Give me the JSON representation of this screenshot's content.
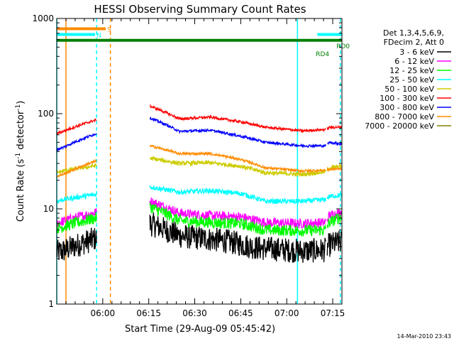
{
  "chart_data": {
    "type": "line",
    "title": "HESSI Observing Summary Count Rates",
    "xlabel": "Start Time (29-Aug-09 05:45:42)",
    "ylabel": "Count Rate (s⁻¹ detector⁻¹)",
    "ylabel_parts": {
      "base": "Count Rate (s",
      "sup1": "-1",
      "mid": " detector",
      "sup2": "-1",
      "end": ")"
    },
    "xlim_min": [
      0,
      93
    ],
    "ylim": [
      1,
      1000
    ],
    "yscale": "log",
    "x_ticks": [
      {
        "min": 15,
        "label": "06:00"
      },
      {
        "min": 30,
        "label": "06:15"
      },
      {
        "min": 45,
        "label": "06:30"
      },
      {
        "min": 60,
        "label": "06:45"
      },
      {
        "min": 75,
        "label": "07:00"
      },
      {
        "min": 90,
        "label": "07:15"
      }
    ],
    "y_ticks": [
      {
        "value": 1,
        "label": "1"
      },
      {
        "value": 10,
        "label": "10"
      },
      {
        "value": 100,
        "label": "100"
      },
      {
        "value": 1000,
        "label": "1000"
      }
    ],
    "legend_placement": "right",
    "legend_header": [
      "Det 1,3,4,5,6,9,",
      "FDecim 2, Att 0"
    ],
    "gaps_min": [
      [
        13,
        30.3
      ],
      [
        87.8,
        88.1
      ]
    ],
    "series": [
      {
        "name": "3 - 6 keV",
        "color": "#000000",
        "noise": 0.3,
        "values": [
          [
            0,
            3.5
          ],
          [
            2,
            3.6
          ],
          [
            30.4,
            7.0
          ],
          [
            40,
            5.2
          ],
          [
            55,
            4.6
          ],
          [
            65,
            3.9
          ],
          [
            80,
            3.6
          ],
          [
            87.5,
            3.7
          ],
          [
            89,
            4.2
          ],
          [
            93,
            4.5
          ]
        ]
      },
      {
        "name": "6 - 12 keV",
        "color": "#ff00ff",
        "noise": 0.12,
        "values": [
          [
            0,
            7.0
          ],
          [
            2,
            7.4
          ],
          [
            30.4,
            12.0
          ],
          [
            40,
            9.0
          ],
          [
            50,
            8.5
          ],
          [
            60,
            8.2
          ],
          [
            68,
            7.2
          ],
          [
            80,
            7.0
          ],
          [
            87.5,
            7.2
          ],
          [
            89,
            8.5
          ],
          [
            93,
            9.3
          ]
        ]
      },
      {
        "name": "12 - 25 keV",
        "color": "#00ff00",
        "noise": 0.14,
        "values": [
          [
            0,
            6.3
          ],
          [
            2,
            6.5
          ],
          [
            30.4,
            10.5
          ],
          [
            40,
            7.5
          ],
          [
            50,
            7.2
          ],
          [
            60,
            7.0
          ],
          [
            68,
            6.0
          ],
          [
            80,
            5.9
          ],
          [
            87.5,
            6.0
          ],
          [
            89,
            7.2
          ],
          [
            93,
            8.3
          ]
        ]
      },
      {
        "name": "25 - 50 keV",
        "color": "#00ffff",
        "noise": 0.06,
        "values": [
          [
            0,
            12.0
          ],
          [
            2,
            12.5
          ],
          [
            30.4,
            17.0
          ],
          [
            40,
            15.0
          ],
          [
            50,
            15.5
          ],
          [
            60,
            14.5
          ],
          [
            68,
            12.0
          ],
          [
            80,
            12.0
          ],
          [
            87.5,
            12.5
          ],
          [
            89,
            13.5
          ],
          [
            93,
            14.0
          ]
        ]
      },
      {
        "name": "50 - 100 keV",
        "color": "#cccc00",
        "noise": 0.05,
        "values": [
          [
            0,
            24.0
          ],
          [
            2,
            25.0
          ],
          [
            30.4,
            34.0
          ],
          [
            40,
            30.0
          ],
          [
            50,
            30.5
          ],
          [
            60,
            28.0
          ],
          [
            68,
            24.0
          ],
          [
            80,
            23.0
          ],
          [
            87.5,
            24.5
          ],
          [
            89,
            27.0
          ],
          [
            93,
            28.0
          ]
        ]
      },
      {
        "name": "100 - 300 keV",
        "color": "#ff0000",
        "noise": 0.03,
        "values": [
          [
            0,
            62.0
          ],
          [
            2,
            65.0
          ],
          [
            30.4,
            120.0
          ],
          [
            40,
            88.0
          ],
          [
            50,
            92.0
          ],
          [
            60,
            82.0
          ],
          [
            68,
            72.0
          ],
          [
            80,
            66.0
          ],
          [
            87.5,
            68.0
          ],
          [
            89,
            72.0
          ],
          [
            93,
            72.0
          ]
        ]
      },
      {
        "name": "300 - 800 keV",
        "color": "#0000ff",
        "noise": 0.03,
        "values": [
          [
            0,
            42.0
          ],
          [
            2,
            44.0
          ],
          [
            30.4,
            90.0
          ],
          [
            40,
            65.0
          ],
          [
            50,
            67.0
          ],
          [
            60,
            58.0
          ],
          [
            68,
            50.0
          ],
          [
            80,
            46.0
          ],
          [
            87.5,
            46.0
          ],
          [
            89,
            50.0
          ],
          [
            93,
            48.0
          ]
        ]
      },
      {
        "name": "800 - 7000 keV",
        "color": "#ff8c00",
        "noise": 0.03,
        "values": [
          [
            0,
            22.0
          ],
          [
            2,
            23.0
          ],
          [
            30.4,
            46.0
          ],
          [
            40,
            38.0
          ],
          [
            50,
            38.0
          ],
          [
            60,
            33.0
          ],
          [
            68,
            27.0
          ],
          [
            80,
            25.0
          ],
          [
            87.5,
            25.5
          ],
          [
            89,
            26.0
          ],
          [
            93,
            26.5
          ]
        ]
      },
      {
        "name": "7000 - 20000 keV",
        "color": "#808000",
        "noise": 0.0,
        "values": []
      }
    ],
    "flag_bars": [
      {
        "label": "S",
        "color": "#ff8c00",
        "y": 780,
        "ranges": [
          [
            0,
            16
          ]
        ]
      },
      {
        "label": "N",
        "color": "#00ffff",
        "y": 680,
        "ranges": [
          [
            0,
            12.5
          ],
          [
            85,
            93
          ]
        ]
      },
      {
        "label": "",
        "color": "#008000",
        "y": 590,
        "ranges": [
          [
            0,
            93
          ]
        ]
      }
    ],
    "annotations": [
      {
        "text": "RD4",
        "x_min": 84.5,
        "y": 430,
        "color": "#008000"
      },
      {
        "text": "RD0",
        "x_min": 91.2,
        "y": 520,
        "color": "#008000"
      }
    ],
    "vlines": [
      {
        "x_min": 0,
        "color": "#00ffff",
        "style": "solid"
      },
      {
        "x_min": 3,
        "color": "#ff8c00",
        "style": "solid"
      },
      {
        "x_min": 13,
        "color": "#00ffff",
        "style": "dashed"
      },
      {
        "x_min": 17.5,
        "color": "#ff8c00",
        "style": "dashed"
      },
      {
        "x_min": 78.5,
        "color": "#00ffff",
        "style": "solid"
      },
      {
        "x_min": 92.5,
        "color": "#00ffff",
        "style": "dashed"
      }
    ]
  },
  "footer": {
    "timestamp": "14-Mar-2010 23:43"
  }
}
